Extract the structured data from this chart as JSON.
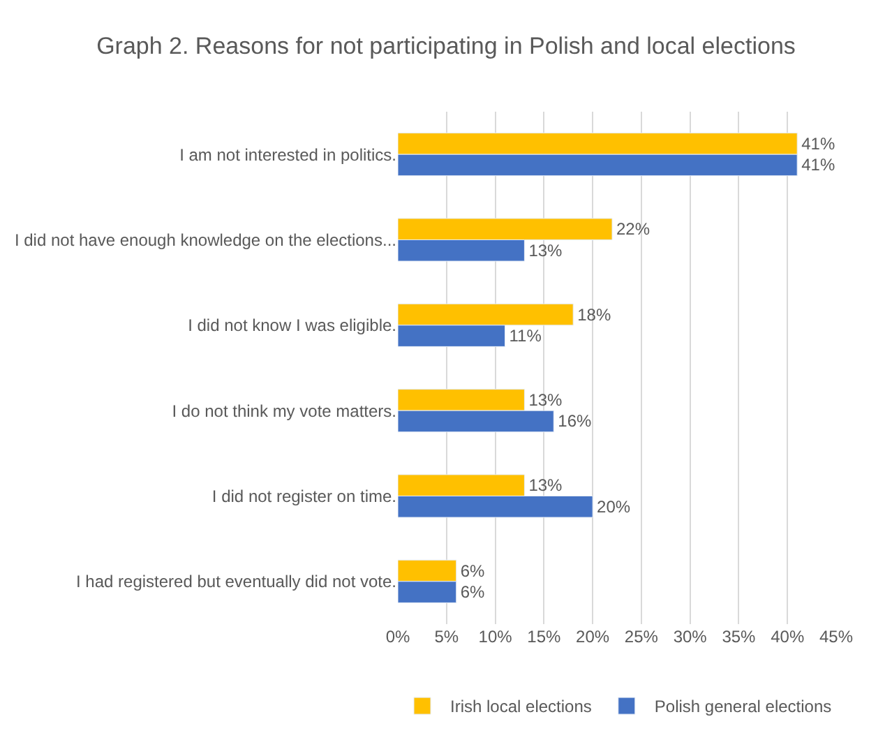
{
  "chart_data": {
    "type": "bar",
    "orientation": "horizontal",
    "title": "Graph 2. Reasons for not participating in Polish and local elections",
    "categories": [
      "I am not interested in politics.",
      "I did not have enough knowledge on the elections...",
      "I did not know I was eligible.",
      "I do not think my vote matters.",
      "I did not register on time.",
      "I had registered but eventually did not vote."
    ],
    "series": [
      {
        "name": "Irish local elections",
        "color": "#ffc000",
        "values": [
          41,
          22,
          18,
          13,
          13,
          6
        ],
        "value_labels": [
          "41%",
          "22%",
          "18%",
          "13%",
          "13%",
          "6%"
        ]
      },
      {
        "name": "Polish general elections",
        "color": "#4472c4",
        "values": [
          41,
          13,
          11,
          16,
          20,
          6
        ],
        "value_labels": [
          "41%",
          "13%",
          "11%",
          "16%",
          "20%",
          "6%"
        ]
      }
    ],
    "xlim": [
      0,
      45
    ],
    "xticks": [
      {
        "value": 0,
        "label": "0%"
      },
      {
        "value": 5,
        "label": "5%"
      },
      {
        "value": 10,
        "label": "10%"
      },
      {
        "value": 15,
        "label": "15%"
      },
      {
        "value": 20,
        "label": "20%"
      },
      {
        "value": 25,
        "label": "25%"
      },
      {
        "value": 30,
        "label": "30%"
      },
      {
        "value": 35,
        "label": "35%"
      },
      {
        "value": 40,
        "label": "40%"
      },
      {
        "value": 45,
        "label": "45%"
      }
    ],
    "grid": "x",
    "legend": "bottom"
  }
}
